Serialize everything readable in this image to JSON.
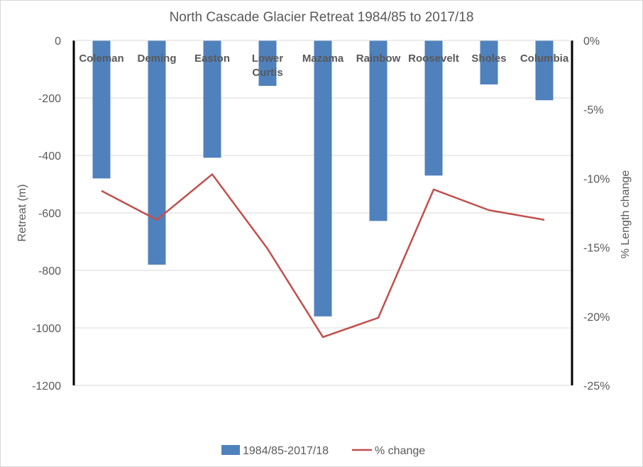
{
  "chart_data": {
    "type": "bar",
    "title": "North Cascade Glacier Retreat 1984/85  to 2017/18",
    "categories": [
      [
        "Coleman"
      ],
      [
        "Deming"
      ],
      [
        "Easton"
      ],
      [
        "Lower",
        "Curtis"
      ],
      [
        "Mazama"
      ],
      [
        "Rainbow"
      ],
      [
        "Roosevelt"
      ],
      [
        "Sholes"
      ],
      [
        "Columbia"
      ]
    ],
    "ylabel": "Retreat (m)",
    "y2label": "% Length change",
    "ylim": [
      -1200,
      0
    ],
    "y2lim": [
      -25,
      0
    ],
    "yticks": [
      0,
      -200,
      -400,
      -600,
      -800,
      -1000,
      -1200
    ],
    "yticklabels": [
      "0",
      "-200",
      "-400",
      "-600",
      "-800",
      "-1000",
      "-1200"
    ],
    "y2ticks": [
      0,
      -5,
      -10,
      -15,
      -20,
      -25
    ],
    "y2ticklabels": [
      "0%",
      "-5%",
      "-10%",
      "-15%",
      "-20%",
      "-25%"
    ],
    "grid": true,
    "legend_position": "bottom",
    "series": [
      {
        "name": "1984/85-2017/18",
        "kind": "bar",
        "axis": "left",
        "color": "#4f81bd",
        "values": [
          -480,
          -780,
          -408,
          -158,
          -960,
          -628,
          -470,
          -153,
          -208
        ]
      },
      {
        "name": "% change",
        "kind": "line",
        "axis": "right",
        "color": "#c0504d",
        "values": [
          -10.9,
          -13.0,
          -9.7,
          -15.1,
          -21.5,
          -20.1,
          -10.8,
          -12.3,
          -13.0
        ]
      }
    ]
  }
}
